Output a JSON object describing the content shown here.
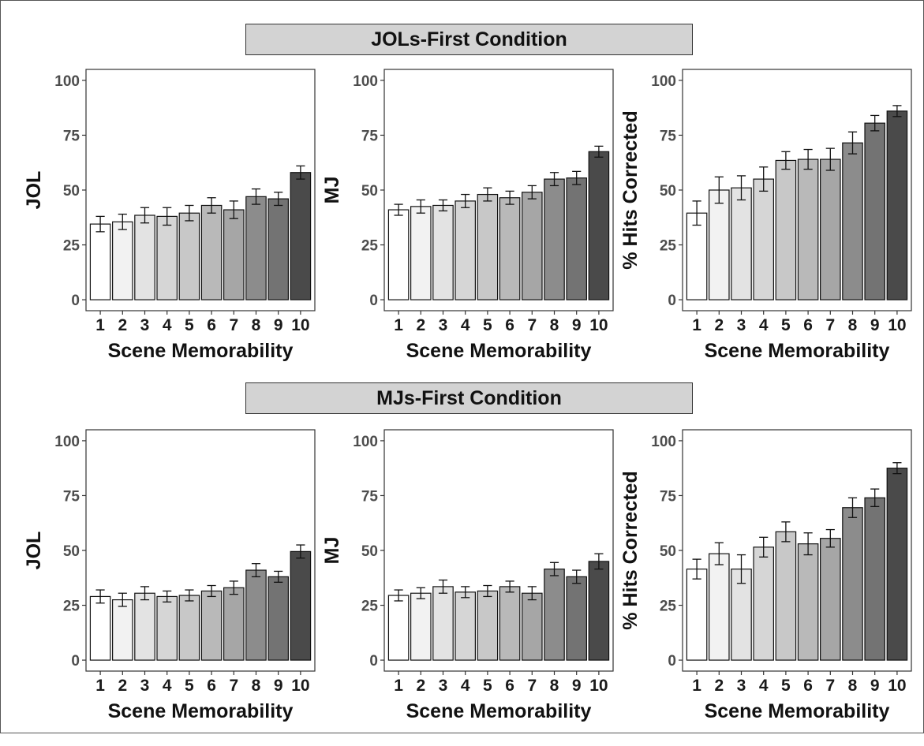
{
  "banners": {
    "top": "JOLs-First Condition",
    "bottom": "MJs-First Condition"
  },
  "bar_colors": [
    "#ffffff",
    "#f2f2f2",
    "#e3e3e3",
    "#d6d6d6",
    "#c8c8c8",
    "#b9b9b9",
    "#a6a6a6",
    "#8c8c8c",
    "#737373",
    "#4a4a4a"
  ],
  "chart_data": [
    {
      "type": "bar",
      "condition": "JOLs-First Condition",
      "categories": [
        "1",
        "2",
        "3",
        "4",
        "5",
        "6",
        "7",
        "8",
        "9",
        "10"
      ],
      "values": [
        34.5,
        35.5,
        38.5,
        38,
        39.5,
        43,
        41,
        47,
        46,
        58
      ],
      "errors": [
        3.5,
        3.5,
        3.5,
        4,
        3.5,
        3.5,
        4,
        3.5,
        3,
        3
      ],
      "xlabel": "Scene Memorability",
      "ylabel": "JOL",
      "ylim": [
        0,
        100
      ],
      "yticks": [
        0,
        25,
        50,
        75,
        100
      ]
    },
    {
      "type": "bar",
      "condition": "JOLs-First Condition",
      "categories": [
        "1",
        "2",
        "3",
        "4",
        "5",
        "6",
        "7",
        "8",
        "9",
        "10"
      ],
      "values": [
        41,
        42.5,
        43,
        45,
        48,
        46.5,
        49,
        55,
        55.5,
        67.5
      ],
      "errors": [
        2.5,
        3,
        2.5,
        3,
        3,
        3,
        3,
        3,
        3,
        2.5
      ],
      "xlabel": "Scene Memorability",
      "ylabel": "MJ",
      "ylim": [
        0,
        100
      ],
      "yticks": [
        0,
        25,
        50,
        75,
        100
      ]
    },
    {
      "type": "bar",
      "condition": "JOLs-First Condition",
      "categories": [
        "1",
        "2",
        "3",
        "4",
        "5",
        "6",
        "7",
        "8",
        "9",
        "10"
      ],
      "values": [
        39.5,
        50,
        51,
        55,
        63.5,
        64,
        64,
        71.5,
        80.5,
        86
      ],
      "errors": [
        5.5,
        6,
        5.5,
        5.5,
        4,
        4.5,
        5,
        5,
        3.5,
        2.5
      ],
      "xlabel": "Scene Memorability",
      "ylabel": "% Hits Corrected",
      "ylim": [
        0,
        100
      ],
      "yticks": [
        0,
        25,
        50,
        75,
        100
      ]
    },
    {
      "type": "bar",
      "condition": "MJs-First Condition",
      "categories": [
        "1",
        "2",
        "3",
        "4",
        "5",
        "6",
        "7",
        "8",
        "9",
        "10"
      ],
      "values": [
        29,
        27.5,
        30.5,
        29,
        29.5,
        31.5,
        33,
        41,
        38,
        49.5
      ],
      "errors": [
        3,
        3,
        3,
        2.5,
        2.5,
        2.5,
        3,
        3,
        2.5,
        3
      ],
      "xlabel": "Scene Memorability",
      "ylabel": "JOL",
      "ylim": [
        0,
        100
      ],
      "yticks": [
        0,
        25,
        50,
        75,
        100
      ]
    },
    {
      "type": "bar",
      "condition": "MJs-First Condition",
      "categories": [
        "1",
        "2",
        "3",
        "4",
        "5",
        "6",
        "7",
        "8",
        "9",
        "10"
      ],
      "values": [
        29.5,
        30.5,
        33.5,
        31,
        31.5,
        33.5,
        30.5,
        41.5,
        38,
        45
      ],
      "errors": [
        2.5,
        2.5,
        3,
        2.5,
        2.5,
        2.5,
        3,
        3,
        3,
        3.5
      ],
      "xlabel": "Scene Memorability",
      "ylabel": "MJ",
      "ylim": [
        0,
        100
      ],
      "yticks": [
        0,
        25,
        50,
        75,
        100
      ]
    },
    {
      "type": "bar",
      "condition": "MJs-First Condition",
      "categories": [
        "1",
        "2",
        "3",
        "4",
        "5",
        "6",
        "7",
        "8",
        "9",
        "10"
      ],
      "values": [
        41.5,
        48.5,
        41.5,
        51.5,
        58.5,
        53,
        55.5,
        69.5,
        74,
        87.5
      ],
      "errors": [
        4.5,
        5,
        6.5,
        4.5,
        4.5,
        5,
        4,
        4.5,
        4,
        2.5
      ],
      "xlabel": "Scene Memorability",
      "ylabel": "% Hits Corrected",
      "ylim": [
        0,
        100
      ],
      "yticks": [
        0,
        25,
        50,
        75,
        100
      ]
    }
  ]
}
